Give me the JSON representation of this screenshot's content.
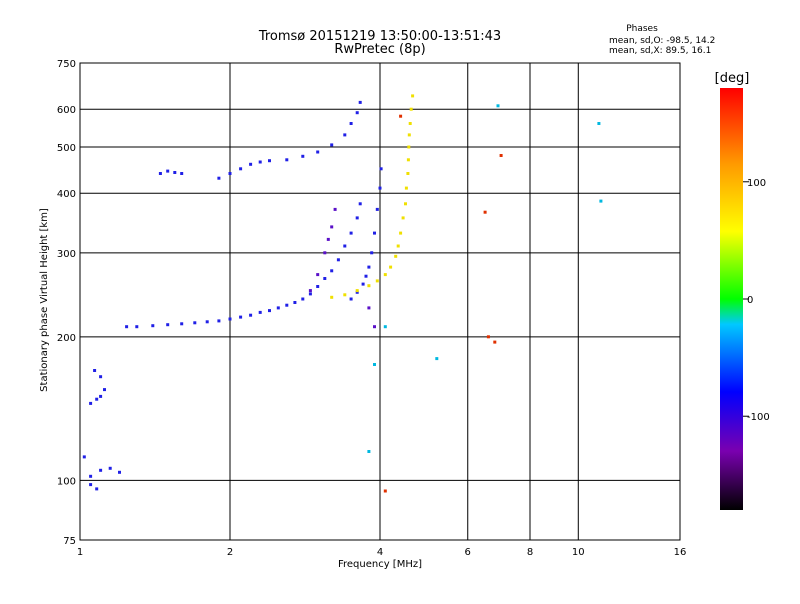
{
  "chart_data": {
    "type": "scatter",
    "title": "Tromsø 20151219 13:50:00-13:51:43",
    "subtitle": "RwPretec (8p)",
    "xlabel": "Frequency [MHz]",
    "ylabel": "Stationary phase Virtual Height [km]",
    "x_scale": "log",
    "y_scale": "log",
    "xlim": [
      1,
      16
    ],
    "ylim": [
      75,
      750
    ],
    "x_ticks": [
      1,
      2,
      4,
      6,
      8,
      10,
      16
    ],
    "y_ticks": [
      75,
      100,
      200,
      300,
      400,
      500,
      600,
      750
    ],
    "grid": true,
    "phase_stats": {
      "title": "Phases",
      "o_line": "mean, sd,O: -98.5, 14.2",
      "x_line": "mean, sd,X: 89.5, 16.1"
    },
    "colorbar": {
      "label": "[deg]",
      "range": [
        -180,
        180
      ],
      "ticks": [
        100,
        0,
        -100
      ],
      "palette": [
        "#000000",
        "#7a00b0",
        "#0000ff",
        "#00c8ff",
        "#00ff00",
        "#ffff00",
        "#ff9a00",
        "#ff0000"
      ]
    },
    "series": [
      {
        "color": "#2020e6",
        "points": [
          [
            1.24,
            210
          ],
          [
            1.3,
            210
          ],
          [
            1.4,
            211
          ],
          [
            1.5,
            212
          ],
          [
            1.6,
            213
          ],
          [
            1.7,
            214
          ],
          [
            1.8,
            215
          ],
          [
            1.9,
            216
          ],
          [
            2.0,
            218
          ],
          [
            2.1,
            220
          ],
          [
            2.2,
            222
          ],
          [
            2.3,
            225
          ],
          [
            2.4,
            227
          ],
          [
            2.5,
            230
          ],
          [
            2.6,
            233
          ],
          [
            2.7,
            236
          ],
          [
            2.8,
            240
          ],
          [
            2.9,
            246
          ],
          [
            3.0,
            255
          ],
          [
            3.1,
            265
          ],
          [
            3.2,
            275
          ],
          [
            3.3,
            290
          ],
          [
            3.4,
            310
          ],
          [
            3.5,
            330
          ],
          [
            3.6,
            355
          ],
          [
            3.65,
            380
          ],
          [
            3.5,
            240
          ],
          [
            3.6,
            248
          ],
          [
            3.7,
            258
          ],
          [
            3.75,
            268
          ],
          [
            3.8,
            280
          ],
          [
            3.85,
            300
          ],
          [
            3.9,
            330
          ],
          [
            3.95,
            370
          ],
          [
            4.0,
            410
          ],
          [
            4.02,
            450
          ],
          [
            1.9,
            430
          ],
          [
            2.0,
            440
          ],
          [
            2.1,
            450
          ],
          [
            2.2,
            460
          ],
          [
            2.3,
            465
          ],
          [
            2.4,
            468
          ],
          [
            2.6,
            470
          ],
          [
            2.8,
            478
          ],
          [
            3.0,
            488
          ],
          [
            3.2,
            505
          ],
          [
            3.4,
            530
          ],
          [
            3.5,
            560
          ],
          [
            3.6,
            590
          ],
          [
            3.65,
            620
          ],
          [
            1.45,
            440
          ],
          [
            1.5,
            445
          ],
          [
            1.55,
            442
          ],
          [
            1.6,
            440
          ],
          [
            1.05,
            145
          ],
          [
            1.08,
            148
          ],
          [
            1.1,
            150
          ],
          [
            1.12,
            155
          ],
          [
            1.1,
            165
          ],
          [
            1.07,
            170
          ],
          [
            1.05,
            102
          ],
          [
            1.1,
            105
          ],
          [
            1.15,
            106
          ],
          [
            1.2,
            104
          ],
          [
            1.05,
            98
          ],
          [
            1.02,
            112
          ],
          [
            1.08,
            96
          ]
        ]
      },
      {
        "color": "#5a10c8",
        "points": [
          [
            2.9,
            250
          ],
          [
            3.0,
            270
          ],
          [
            3.1,
            300
          ],
          [
            3.15,
            320
          ],
          [
            3.2,
            340
          ],
          [
            3.25,
            370
          ],
          [
            3.8,
            230
          ],
          [
            3.9,
            210
          ]
        ]
      },
      {
        "color": "#f0e000",
        "points": [
          [
            3.2,
            242
          ],
          [
            3.4,
            245
          ],
          [
            3.6,
            250
          ],
          [
            3.8,
            256
          ],
          [
            3.95,
            262
          ],
          [
            4.1,
            270
          ],
          [
            4.2,
            280
          ],
          [
            4.3,
            295
          ],
          [
            4.35,
            310
          ],
          [
            4.4,
            330
          ],
          [
            4.45,
            355
          ],
          [
            4.5,
            380
          ],
          [
            4.52,
            410
          ],
          [
            4.55,
            440
          ],
          [
            4.56,
            470
          ],
          [
            4.57,
            500
          ],
          [
            4.58,
            530
          ],
          [
            4.6,
            560
          ],
          [
            4.62,
            600
          ],
          [
            4.65,
            640
          ]
        ]
      },
      {
        "color": "#00b8e0",
        "points": [
          [
            3.9,
            175
          ],
          [
            4.1,
            210
          ],
          [
            5.2,
            180
          ],
          [
            6.9,
            610
          ],
          [
            11.0,
            560
          ],
          [
            11.1,
            385
          ],
          [
            3.8,
            115
          ]
        ]
      },
      {
        "color": "#e03000",
        "points": [
          [
            4.1,
            95
          ],
          [
            6.5,
            365
          ],
          [
            6.6,
            200
          ],
          [
            6.8,
            195
          ],
          [
            7.0,
            480
          ],
          [
            4.4,
            580
          ]
        ]
      }
    ]
  }
}
